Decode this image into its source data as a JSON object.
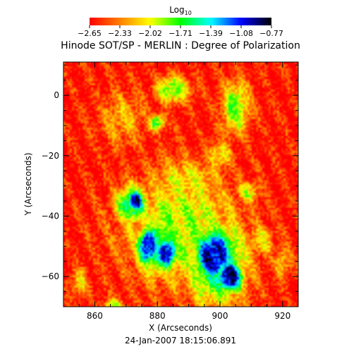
{
  "chart_data": {
    "type": "heatmap",
    "title": "Hinode SOT/SP - MERLIN : Degree of Polarization",
    "xlabel": "X (Arcseconds)",
    "ylabel": "Y (Arcseconds)",
    "subtitle": "24-Jan-2007 18:15:06.891",
    "colorbar": {
      "label_base": "Log",
      "label_sub": "10",
      "ticks": [
        "−2.65",
        "−2.33",
        "−2.02",
        "−1.71",
        "−1.39",
        "−1.08",
        "−0.77"
      ],
      "min": -2.65,
      "max": -0.77,
      "colormap": "rainbow",
      "colors": [
        "#ff0000",
        "#ff8000",
        "#ffff00",
        "#00ff00",
        "#00ffff",
        "#0000ff",
        "#000000"
      ]
    },
    "xlim": [
      850,
      925
    ],
    "ylim": [
      -70,
      11
    ],
    "x_ticks": [
      860,
      880,
      900,
      920
    ],
    "y_ticks": [
      0,
      -20,
      -40,
      -60
    ],
    "x_tick_labels": [
      "860",
      "880",
      "900",
      "920"
    ],
    "y_tick_labels": [
      "0",
      "−20",
      "−40",
      "−60"
    ],
    "background_level": -2.6,
    "features": [
      {
        "kind": "blob",
        "x": 873,
        "y": -35,
        "rx": 3,
        "ry": 4,
        "level": -1.0
      },
      {
        "kind": "blob",
        "x": 872,
        "y": -36,
        "rx": 6,
        "ry": 7,
        "level": -1.55
      },
      {
        "kind": "blob",
        "x": 877,
        "y": -50,
        "rx": 4,
        "ry": 7,
        "level": -1.05
      },
      {
        "kind": "blob",
        "x": 883,
        "y": -52,
        "rx": 4,
        "ry": 6,
        "level": -1.05
      },
      {
        "kind": "blob",
        "x": 880,
        "y": -50,
        "rx": 8,
        "ry": 11,
        "level": -1.6
      },
      {
        "kind": "blob",
        "x": 898,
        "y": -53,
        "rx": 7,
        "ry": 10,
        "level": -1.0
      },
      {
        "kind": "blob",
        "x": 903,
        "y": -60,
        "rx": 5,
        "ry": 6,
        "level": -0.95
      },
      {
        "kind": "blob",
        "x": 899,
        "y": -55,
        "rx": 11,
        "ry": 16,
        "level": -1.55
      },
      {
        "kind": "blob",
        "x": 888,
        "y": -45,
        "rx": 21,
        "ry": 20,
        "level": -1.95
      },
      {
        "kind": "blob",
        "x": 889,
        "y": -30,
        "rx": 14,
        "ry": 10,
        "level": -2.1
      },
      {
        "kind": "blob",
        "x": 905,
        "y": -4,
        "rx": 5,
        "ry": 10,
        "level": -1.9
      },
      {
        "kind": "blob",
        "x": 885,
        "y": 2,
        "rx": 6,
        "ry": 5,
        "level": -1.85
      },
      {
        "kind": "blob",
        "x": 880,
        "y": -9,
        "rx": 3,
        "ry": 3,
        "level": -1.8
      },
      {
        "kind": "blob",
        "x": 869,
        "y": -8,
        "rx": 8,
        "ry": 10,
        "level": -2.25
      },
      {
        "kind": "blob",
        "x": 900,
        "y": -20,
        "rx": 4,
        "ry": 5,
        "level": -2.05
      },
      {
        "kind": "blob",
        "x": 866,
        "y": -70,
        "rx": 4,
        "ry": 3,
        "level": -2.0
      },
      {
        "kind": "blob",
        "x": 909,
        "y": -32,
        "rx": 4,
        "ry": 4,
        "level": -2.05
      },
      {
        "kind": "blob",
        "x": 913,
        "y": -48,
        "rx": 5,
        "ry": 6,
        "level": -2.15
      },
      {
        "kind": "blob",
        "x": 855,
        "y": -62,
        "rx": 3,
        "ry": 5,
        "level": -2.15
      },
      {
        "kind": "blob",
        "x": 920,
        "y": -55,
        "rx": 3,
        "ry": 6,
        "level": -2.2
      }
    ],
    "grid": false
  }
}
